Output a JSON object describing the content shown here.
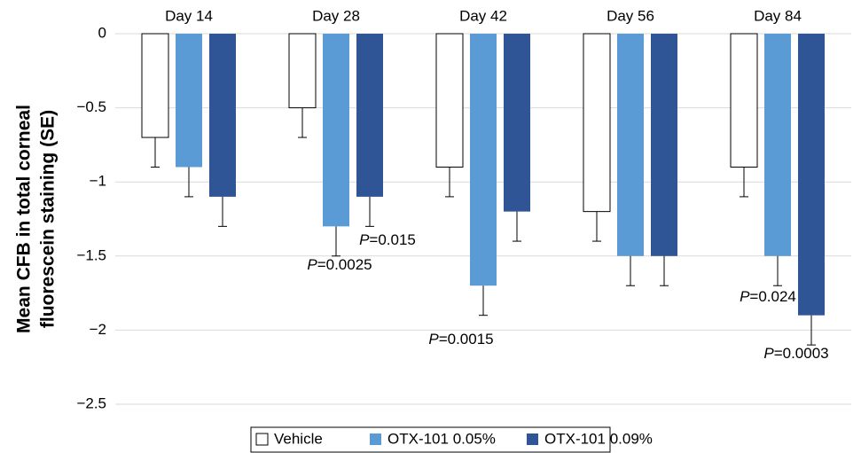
{
  "chart_data": {
    "type": "bar",
    "ylabel": [
      "Mean CFB in total corneal",
      "fluorescein staining (SE)"
    ],
    "categories": [
      "Day 14",
      "Day 28",
      "Day 42",
      "Day 56",
      "Day 84"
    ],
    "series": [
      {
        "name": "Vehicle",
        "color": "#ffffff",
        "values": [
          -0.7,
          -0.5,
          -0.9,
          -1.2,
          -0.9
        ],
        "errors": [
          0.2,
          0.2,
          0.2,
          0.2,
          0.2
        ]
      },
      {
        "name": "OTX-101 0.05%",
        "color": "#5b9bd5",
        "values": [
          -0.9,
          -1.3,
          -1.7,
          -1.5,
          -1.5
        ],
        "errors": [
          0.2,
          0.2,
          0.2,
          0.2,
          0.2
        ]
      },
      {
        "name": "OTX-101 0.09%",
        "color": "#2f5597",
        "values": [
          -1.1,
          -1.1,
          -1.2,
          -1.5,
          -1.9
        ],
        "errors": [
          0.2,
          0.2,
          0.2,
          0.2,
          0.2
        ]
      }
    ],
    "ylim": [
      -2.5,
      0
    ],
    "yticks": [
      0,
      {
        "value": -0.5,
        "label": "−0.5"
      },
      {
        "value": -1,
        "label": "−1"
      },
      {
        "value": -1.5,
        "label": "−1.5"
      },
      {
        "value": -2,
        "label": "−2"
      },
      {
        "value": -2.5,
        "label": "−2.5"
      }
    ],
    "grid": true,
    "legend": "bottom",
    "annotations": [
      {
        "prefix": "P",
        "text": "=0.0025"
      },
      {
        "prefix": "P",
        "text": "=0.015"
      },
      {
        "prefix": "P",
        "text": "=0.0015"
      },
      {
        "prefix": "P",
        "text": "=0.024"
      },
      {
        "prefix": "P",
        "text": "=0.0003"
      }
    ]
  }
}
